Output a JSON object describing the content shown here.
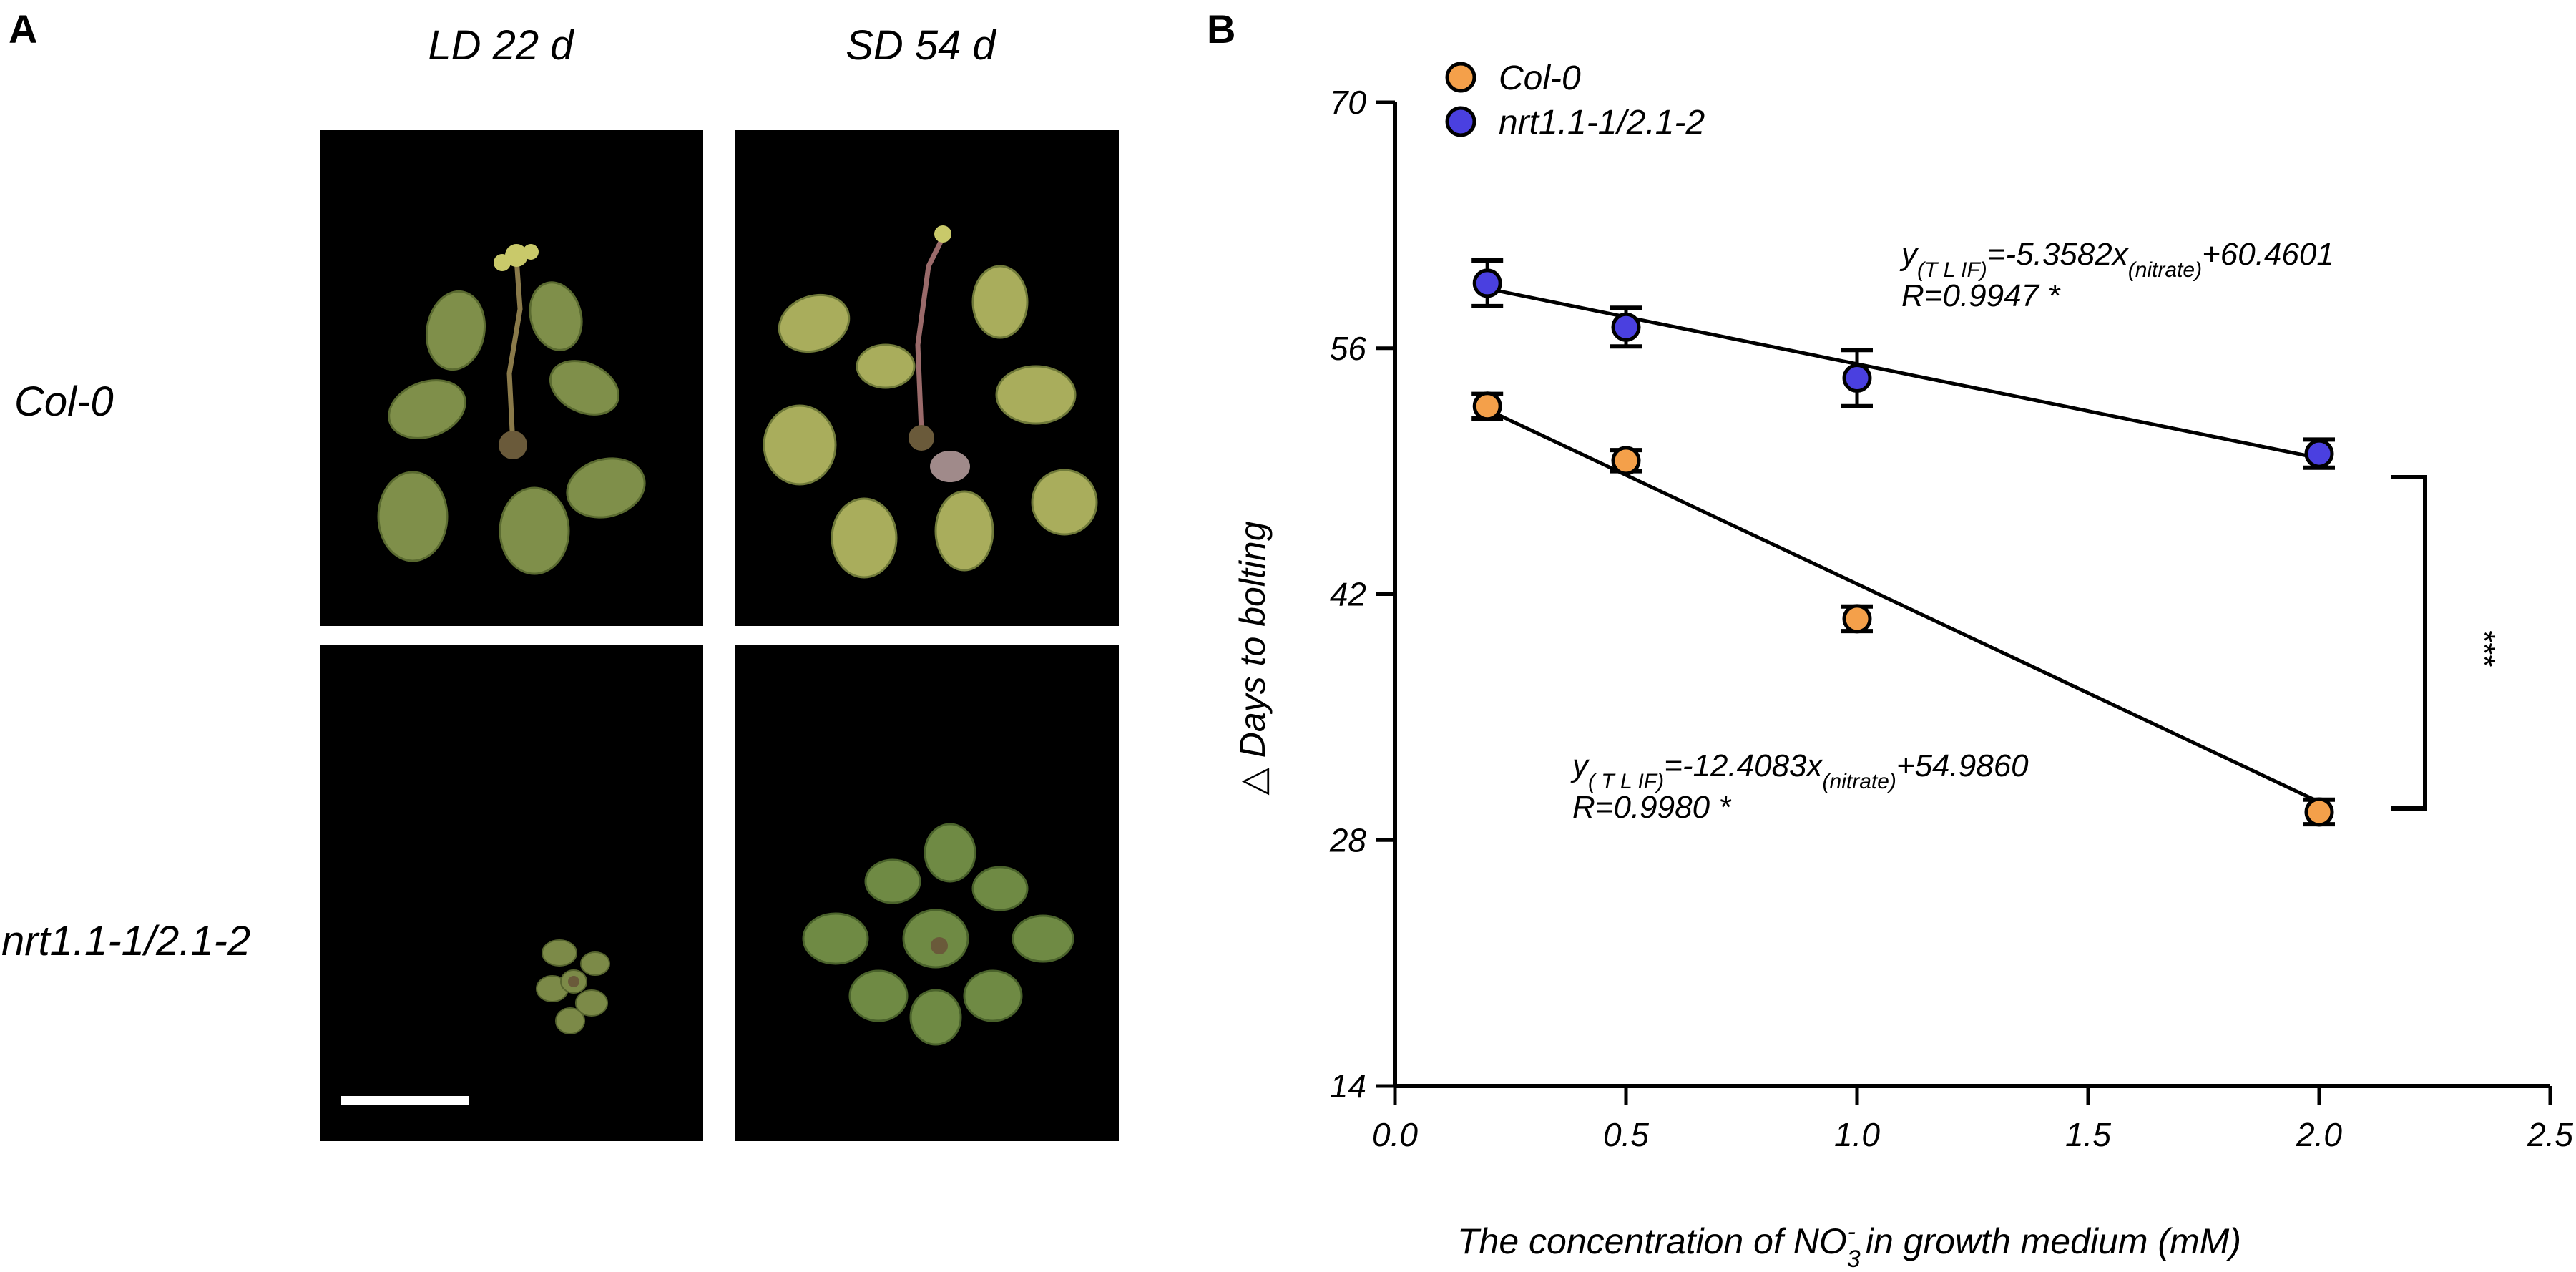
{
  "panel_a": {
    "letter": "A",
    "columns": [
      "LD 22 d",
      "SD  54 d"
    ],
    "rows": [
      "Col-0",
      "nrt1.1-1/2.1-2"
    ]
  },
  "panel_b": {
    "letter": "B"
  },
  "chart_data": {
    "type": "scatter",
    "title": "",
    "xlabel_pre": "The concentration of NO",
    "xlabel_sub": "3",
    "xlabel_sup": "-",
    "xlabel_post": "  in growth medium (mM)",
    "ylabel_symbol": "△",
    "ylabel": "Days to bolting",
    "xlim": [
      0.0,
      2.5
    ],
    "ylim": [
      14,
      70
    ],
    "xticks": [
      0.0,
      0.5,
      1.0,
      1.5,
      2.0,
      2.5
    ],
    "xtick_labels": [
      "0.0",
      "0.5",
      "1.0",
      "1.5",
      "2.0",
      "2.5"
    ],
    "yticks": [
      14,
      28,
      42,
      56,
      70
    ],
    "ytick_labels": [
      "14",
      "28",
      "42",
      "56",
      "70"
    ],
    "legend_position": "top-left",
    "series": [
      {
        "name": "Col-0",
        "color": "#F4A04A",
        "x": [
          0.2,
          0.5,
          1.0,
          2.0
        ],
        "y": [
          52.7,
          49.6,
          40.6,
          29.6
        ],
        "err": [
          0.7,
          0.6,
          0.7,
          0.7
        ],
        "fit": {
          "slope": -12.4083,
          "intercept": 54.986
        },
        "equation": {
          "y": "y",
          "y_sub": "( T L IF)",
          "body": "=-12.4083x",
          "x_sub": "(nitrate)",
          "tail": "+54.9860",
          "r": "R=0.9980 *"
        }
      },
      {
        "name": "nrt1.1-1/2.1-2",
        "color": "#4A40E0",
        "x": [
          0.2,
          0.5,
          1.0,
          2.0
        ],
        "y": [
          59.7,
          57.2,
          54.3,
          50.0
        ],
        "err": [
          1.3,
          1.1,
          1.6,
          0.8
        ],
        "fit": {
          "slope": -5.3582,
          "intercept": 60.4601
        },
        "equation": {
          "y": "y",
          "y_sub": "(T L IF)",
          "body": "=-5.3582x",
          "x_sub": "(nitrate)",
          "tail": "+60.4601",
          "r": "R=0.9947 *"
        }
      }
    ],
    "significance": "***"
  }
}
